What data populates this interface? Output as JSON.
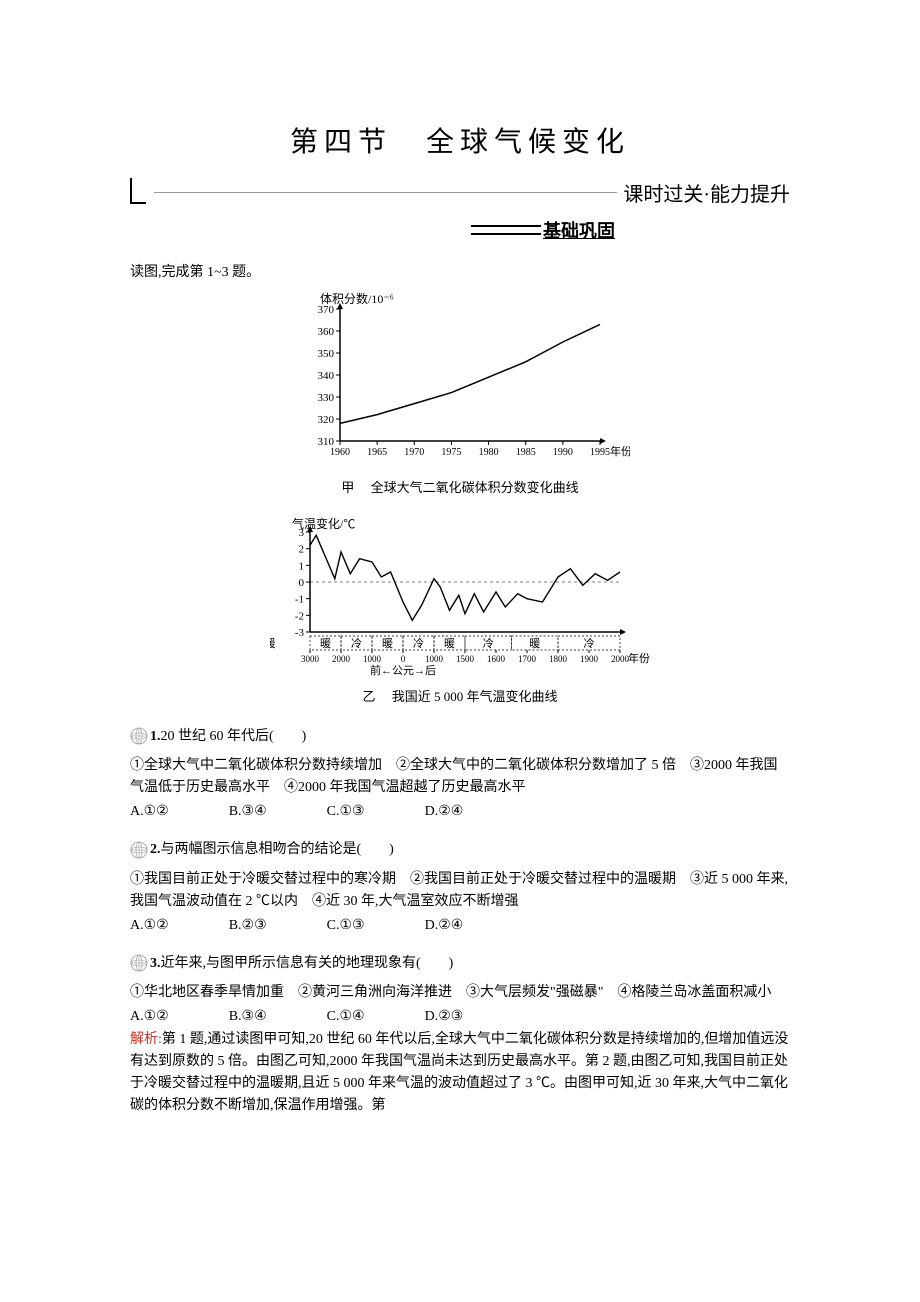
{
  "title": "第四节　全球气候变化",
  "subtitle": "课时过关·能力提升",
  "inner_sub": "基础巩固",
  "prompt": "读图,完成第 1~3 题。",
  "chart1": {
    "type": "line",
    "y_axis_label": "体积分数/10⁻⁶",
    "x_axis_label_suffix": "年份",
    "yticks": [
      310,
      320,
      330,
      340,
      350,
      360,
      370
    ],
    "xticks": [
      1960,
      1965,
      1970,
      1975,
      1980,
      1985,
      1990,
      1995
    ],
    "xlim": [
      1960,
      1995
    ],
    "ylim": [
      310,
      370
    ],
    "line_color": "#000000",
    "line_width": 1.5,
    "points": [
      [
        1960,
        318
      ],
      [
        1965,
        322
      ],
      [
        1970,
        327
      ],
      [
        1975,
        332
      ],
      [
        1980,
        339
      ],
      [
        1985,
        346
      ],
      [
        1990,
        355
      ],
      [
        1995,
        363
      ]
    ],
    "caption_prefix": "甲",
    "caption": "全球大气二氧化碳体积分数变化曲线"
  },
  "chart2": {
    "type": "line",
    "y_axis_label": "气温变化/℃",
    "x_axis_label_suffix": "年份",
    "yticks": [
      -3,
      -2,
      -1,
      0,
      1,
      2,
      3
    ],
    "xticks_values": [
      -3000,
      -2000,
      -1000,
      0,
      1000,
      1500,
      1600,
      1700,
      1800,
      1900,
      2000
    ],
    "xticks_labels": [
      "3000",
      "2000",
      "1000",
      "0",
      "1000",
      "1500",
      "1600",
      "1700",
      "1800",
      "1900",
      "2000"
    ],
    "periods_row": [
      "暖",
      "冷",
      "暖",
      "冷",
      "暖",
      "冷",
      "暖",
      "冷",
      "暖"
    ],
    "era_line": "前←公元→后",
    "line_color": "#000000",
    "line_width": 1.4,
    "caption_prefix": "乙",
    "caption": "我国近 5 000 年气温变化曲线"
  },
  "questions": [
    {
      "num": "1.",
      "head": "20 世纪 60 年代后(　　)",
      "stem": "①全球大气中二氧化碳体积分数持续增加　②全球大气中的二氧化碳体积分数增加了 5 倍　③2000 年我国气温低于历史最高水平　④2000 年我国气温超越了历史最高水平",
      "opts": {
        "A": "①②",
        "B": "③④",
        "C": "①③",
        "D": "②④"
      }
    },
    {
      "num": "2.",
      "head": "与两幅图示信息相吻合的结论是(　　)",
      "stem": "①我国目前正处于冷暖交替过程中的寒冷期　②我国目前正处于冷暖交替过程中的温暖期　③近 5 000 年来,我国气温波动值在 2 ℃以内　④近 30 年,大气温室效应不断增强",
      "opts": {
        "A": "①②",
        "B": "②③",
        "C": "①③",
        "D": "②④"
      }
    },
    {
      "num": "3.",
      "head": "近年来,与图甲所示信息有关的地理现象有(　　)",
      "stem": "①华北地区春季旱情加重　②黄河三角洲向海洋推进　③大气层频发\"强磁暴\"　④格陵兰岛冰盖面积减小",
      "opts": {
        "A": "①②",
        "B": "③④",
        "C": "①④",
        "D": "②③"
      }
    }
  ],
  "analysis_label": "解析:",
  "analysis_text": "第 1 题,通过读图甲可知,20 世纪 60 年代以后,全球大气中二氧化碳体积分数是持续增加的,但增加值远没有达到原数的 5 倍。由图乙可知,2000 年我国气温尚未达到历史最高水平。第 2 题,由图乙可知,我国目前正处于冷暖交替过程中的温暖期,且近 5 000 年来气温的波动值超过了 3 ℃。由图甲可知,近 30 年来,大气中二氧化碳的体积分数不断增加,保温作用增强。第"
}
